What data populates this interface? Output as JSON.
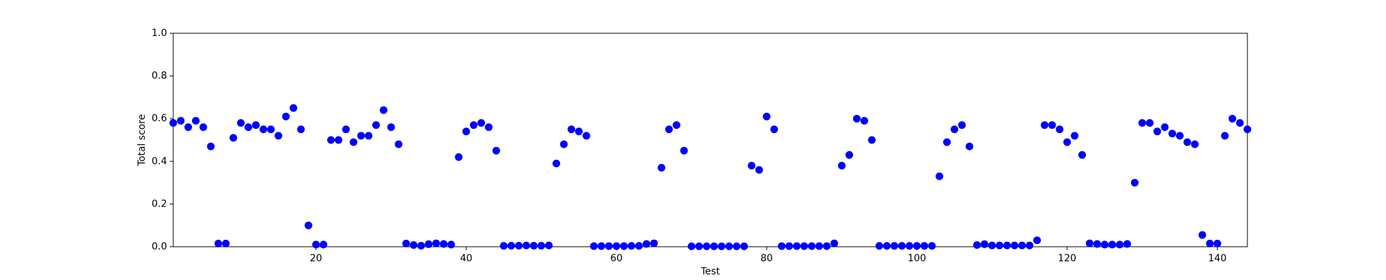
{
  "chart_data": {
    "type": "scatter",
    "x_label": "Test",
    "y_label": "Total score",
    "x": [
      1,
      2,
      3,
      4,
      5,
      6,
      7,
      8,
      9,
      10,
      11,
      12,
      13,
      14,
      15,
      16,
      17,
      18,
      19,
      20,
      21,
      22,
      23,
      24,
      25,
      26,
      27,
      28,
      29,
      30,
      31,
      32,
      33,
      34,
      35,
      36,
      37,
      38,
      39,
      40,
      41,
      42,
      43,
      44,
      45,
      46,
      47,
      48,
      49,
      50,
      51,
      52,
      53,
      54,
      55,
      56,
      57,
      58,
      59,
      60,
      61,
      62,
      63,
      64,
      65,
      66,
      67,
      68,
      69,
      70,
      71,
      72,
      73,
      74,
      75,
      76,
      77,
      78,
      79,
      80,
      81,
      82,
      83,
      84,
      85,
      86,
      87,
      88,
      89,
      90,
      91,
      92,
      93,
      94,
      95,
      96,
      97,
      98,
      99,
      100,
      101,
      102,
      103,
      104,
      105,
      106,
      107,
      108,
      109,
      110,
      111,
      112,
      113,
      114,
      115,
      116,
      117,
      118,
      119,
      120,
      121,
      122,
      123,
      124,
      125,
      126,
      127,
      128,
      129,
      130,
      131,
      132,
      133,
      134,
      135,
      136,
      137,
      138,
      139,
      140,
      141,
      142,
      143,
      144
    ],
    "series": [
      {
        "color": "#0000ff",
        "values": [
          0.58,
          0.59,
          0.56,
          0.59,
          0.56,
          0.47,
          0.015,
          0.015,
          0.51,
          0.58,
          0.56,
          0.57,
          0.55,
          0.55,
          0.52,
          0.61,
          0.65,
          0.55,
          0.1,
          0.01,
          0.01,
          0.5,
          0.5,
          0.55,
          0.49,
          0.52,
          0.52,
          0.57,
          0.64,
          0.56,
          0.48,
          0.015,
          0.008,
          0.005,
          0.012,
          0.016,
          0.013,
          0.01,
          0.42,
          0.54,
          0.57,
          0.58,
          0.56,
          0.45,
          0.004,
          0.005,
          0.005,
          0.006,
          0.005,
          0.005,
          0.006,
          0.39,
          0.48,
          0.55,
          0.54,
          0.52,
          0.003,
          0.003,
          0.003,
          0.003,
          0.003,
          0.004,
          0.004,
          0.013,
          0.016,
          0.37,
          0.55,
          0.57,
          0.45,
          0.002,
          0.002,
          0.002,
          0.002,
          0.002,
          0.002,
          0.002,
          0.002,
          0.38,
          0.36,
          0.61,
          0.55,
          0.003,
          0.003,
          0.003,
          0.003,
          0.003,
          0.003,
          0.003,
          0.016,
          0.38,
          0.43,
          0.6,
          0.59,
          0.5,
          0.004,
          0.004,
          0.004,
          0.004,
          0.004,
          0.004,
          0.004,
          0.004,
          0.33,
          0.49,
          0.55,
          0.57,
          0.47,
          0.008,
          0.012,
          0.006,
          0.006,
          0.006,
          0.006,
          0.006,
          0.006,
          0.03,
          0.57,
          0.57,
          0.55,
          0.49,
          0.52,
          0.43,
          0.016,
          0.013,
          0.01,
          0.01,
          0.01,
          0.013,
          0.3,
          0.58,
          0.58,
          0.54,
          0.56,
          0.53,
          0.52,
          0.49,
          0.48,
          0.055,
          0.015,
          0.015,
          0.52,
          0.6,
          0.58,
          0.55
        ]
      }
    ],
    "xlim": [
      1,
      144
    ],
    "xticks": [
      20,
      40,
      60,
      80,
      100,
      120,
      140
    ],
    "ylim": [
      0,
      1
    ],
    "yticks": [
      {
        "value": 0,
        "label": "0.0"
      },
      0.2,
      0.4,
      0.6,
      0.8,
      {
        "value": 1,
        "label": "1.0"
      }
    ]
  }
}
